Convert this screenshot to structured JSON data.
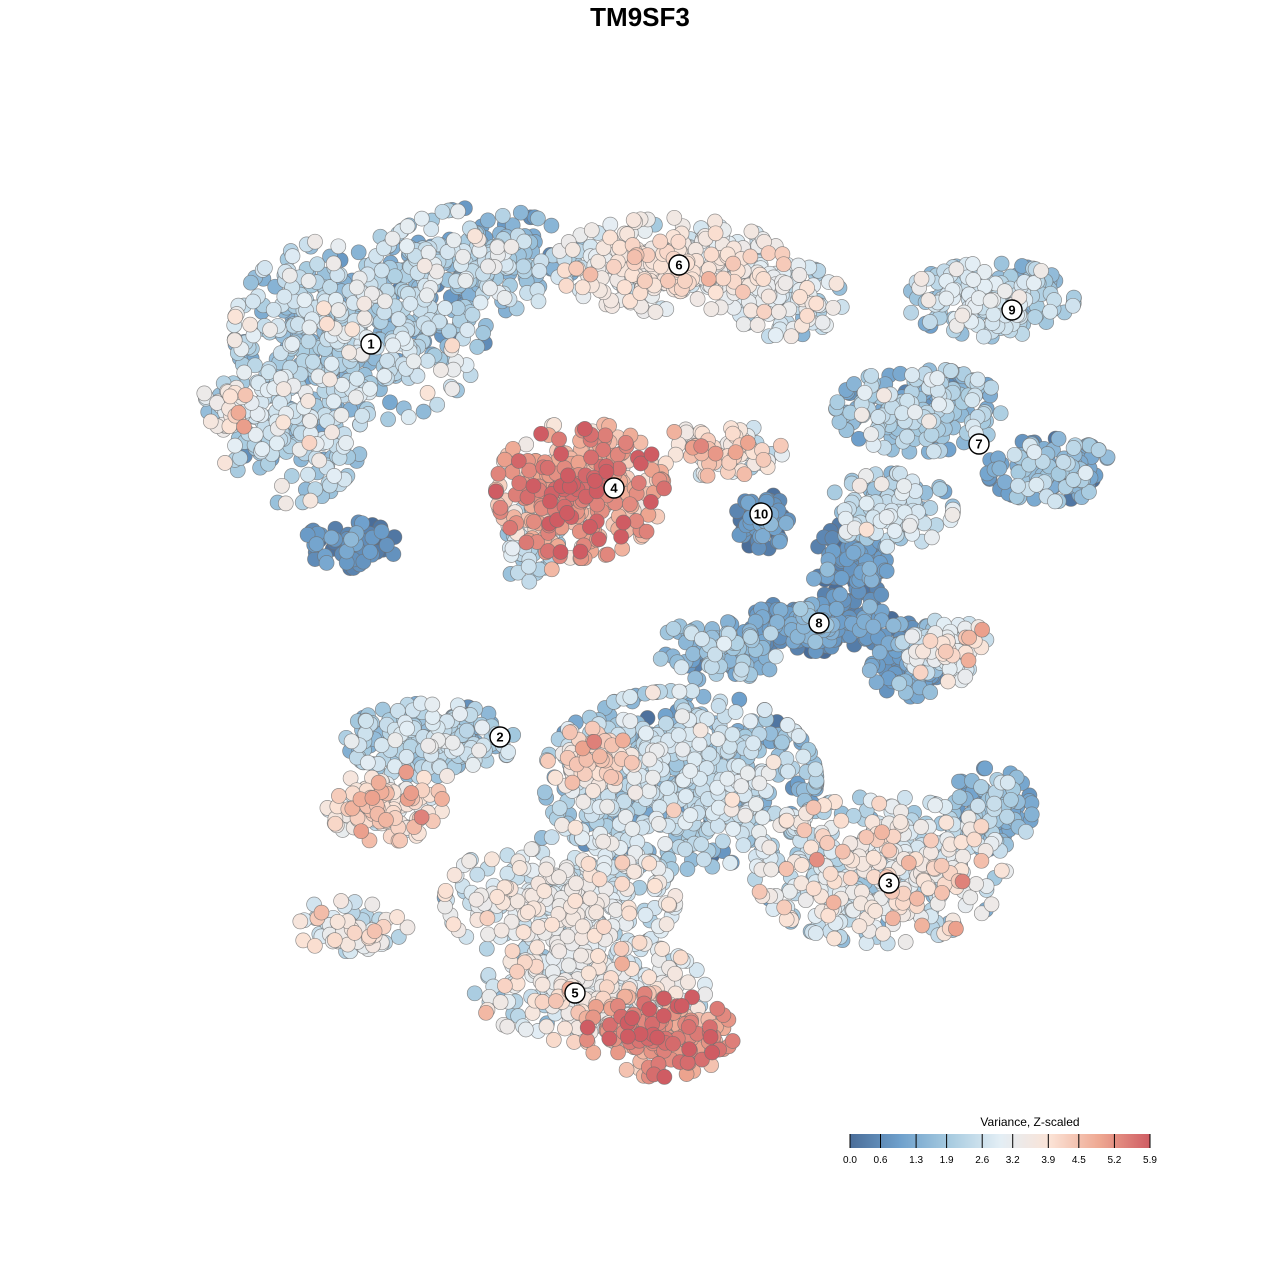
{
  "chart_data": {
    "type": "scatter",
    "title": "TM9SF3",
    "color_scale": {
      "title": "Variance, Z-scaled",
      "ticks": [
        "0.0",
        "0.6",
        "1.3",
        "1.9",
        "2.6",
        "3.2",
        "3.9",
        "4.5",
        "5.2",
        "5.9"
      ],
      "colors": [
        "#4a6d99",
        "#6ea0cc",
        "#a7cbe0",
        "#e3eef5",
        "#fbe3d6",
        "#eea791",
        "#cf5c63"
      ],
      "range": [
        0.0,
        5.9
      ]
    },
    "clusters": [
      {
        "label": "1",
        "value": 2.2
      },
      {
        "label": "2",
        "value": 2.3
      },
      {
        "label": "3",
        "value": 2.7
      },
      {
        "label": "4",
        "value": 4.6
      },
      {
        "label": "5",
        "value": 3.2
      },
      {
        "label": "6",
        "value": 3.2
      },
      {
        "label": "7",
        "value": 1.7
      },
      {
        "label": "8",
        "value": 1.2
      },
      {
        "label": "9",
        "value": 2.2
      },
      {
        "label": "10",
        "value": 1.0
      }
    ]
  }
}
